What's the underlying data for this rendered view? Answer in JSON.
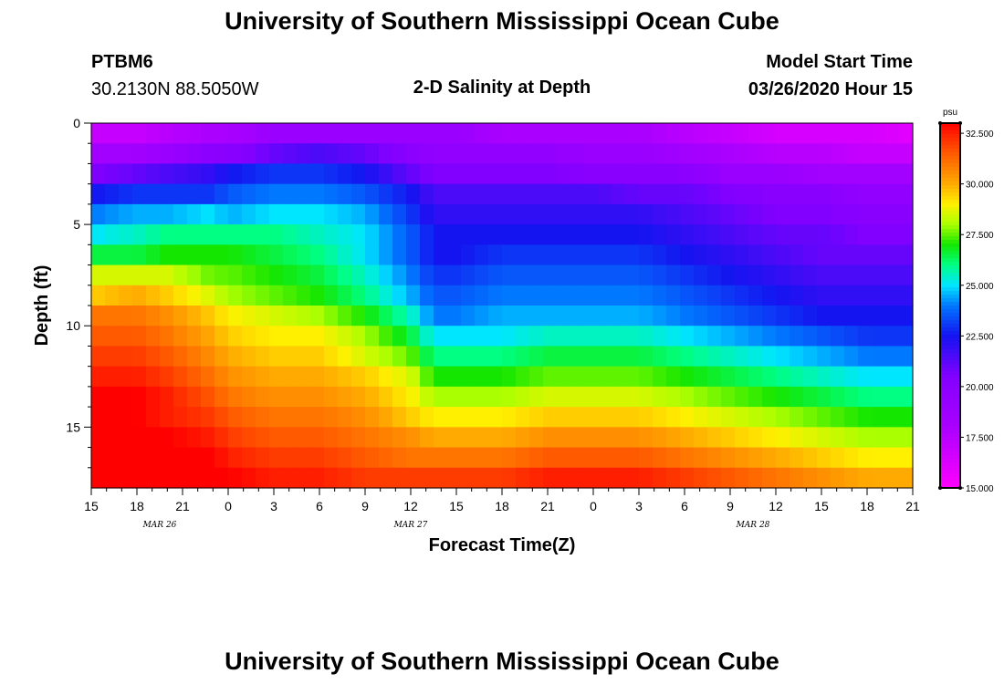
{
  "header": {
    "title": "University of Southern Mississippi Ocean Cube",
    "station": "PTBM6",
    "coords": "30.2130N 88.5050W",
    "plot_title": "2-D Salinity at Depth",
    "model_start_label": "Model Start Time",
    "model_start_value": "03/26/2020 Hour 15"
  },
  "footer": {
    "title": "University of Southern Mississippi Ocean Cube"
  },
  "chart_data": {
    "type": "heatmap",
    "title": "2-D Salinity at Depth",
    "xlabel": "Forecast Time(Z)",
    "ylabel": "Depth (ft)",
    "x_tick_labels": [
      "15",
      "18",
      "21",
      "0",
      "3",
      "6",
      "9",
      "12",
      "15",
      "18",
      "21",
      "0",
      "3",
      "6",
      "9",
      "12",
      "15",
      "18",
      "21"
    ],
    "x_range_hours": [
      0,
      54
    ],
    "date_labels": [
      {
        "label": "MAR 26",
        "hour": 4.5
      },
      {
        "label": "MAR 27",
        "hour": 21
      },
      {
        "label": "MAR 28",
        "hour": 43.5
      }
    ],
    "y_ticks": [
      0,
      5,
      10,
      15
    ],
    "y_tick_labels": [
      "0",
      "5",
      "10",
      "15"
    ],
    "ylim": [
      0,
      18
    ],
    "colorbar": {
      "unit": "psu",
      "min": 15.0,
      "max": 33.0,
      "tick_values": [
        32.5,
        30.0,
        27.5,
        25.0,
        22.5,
        20.0,
        17.5,
        15.0
      ],
      "tick_labels": [
        "32.500",
        "30.000",
        "27.500",
        "25.000",
        "22.500",
        "20.000",
        "17.500",
        "15.000"
      ]
    },
    "depth_levels_ft": [
      0.5,
      1.5,
      2.5,
      3.5,
      4.5,
      5.5,
      6.5,
      7.5,
      8.5,
      9.5,
      10.5,
      11.5,
      12.5,
      13.5,
      14.5,
      15.5,
      16.5,
      17.5
    ],
    "key_times_hours": [
      0,
      3,
      5,
      8,
      9,
      12,
      15,
      18,
      21,
      22.5,
      24,
      27,
      30,
      33,
      36,
      39,
      42,
      45,
      48,
      51,
      54
    ],
    "salinity_psu": [
      [
        17,
        17,
        17.5,
        18,
        18,
        19,
        19,
        19,
        19,
        19,
        19,
        18,
        18,
        18,
        18,
        17.5,
        17,
        16.5,
        16.5,
        16.5,
        16
      ],
      [
        18.5,
        18.5,
        19,
        20,
        20,
        21,
        21.5,
        21,
        20,
        19.5,
        19.5,
        19.5,
        19.5,
        19,
        19,
        18.5,
        18,
        17.5,
        17.5,
        17,
        17
      ],
      [
        20.5,
        21,
        21.5,
        22,
        22.5,
        23,
        23,
        22.5,
        21,
        20.5,
        20.5,
        20.5,
        20.5,
        20,
        20,
        20,
        19,
        19,
        18.5,
        18.5,
        18.5
      ],
      [
        22.5,
        23,
        23,
        23,
        23.5,
        24,
        24,
        23.5,
        22.5,
        21.5,
        21.5,
        21.5,
        21.5,
        21.5,
        21,
        21,
        20.5,
        20,
        20,
        19.5,
        19.5
      ],
      [
        24,
        24.5,
        24.5,
        25,
        24.5,
        25,
        25,
        24.5,
        23,
        22,
        22,
        22,
        22,
        22,
        22,
        21.5,
        21,
        20.5,
        20.5,
        20,
        20
      ],
      [
        25,
        25.5,
        26,
        26,
        26,
        26,
        25.5,
        25,
        23.5,
        22.5,
        22.5,
        22.5,
        22.5,
        22.5,
        22.5,
        22,
        21.5,
        21,
        21,
        20.5,
        20.5
      ],
      [
        26.5,
        26.5,
        27,
        27,
        27,
        26.5,
        26,
        25,
        23.5,
        22.5,
        22.5,
        23,
        23,
        23,
        23,
        22.5,
        22,
        21.5,
        21,
        21,
        21
      ],
      [
        28.5,
        28.5,
        28.5,
        27.5,
        27.5,
        27,
        26.5,
        25.5,
        24,
        23,
        23,
        23.5,
        23.5,
        23.5,
        23.5,
        23,
        22.5,
        22,
        21.5,
        21.5,
        21.5
      ],
      [
        29.5,
        30,
        29.5,
        28.5,
        28,
        27.5,
        27,
        26,
        24.5,
        23.5,
        23.5,
        24,
        24,
        24,
        24,
        23.5,
        23,
        22.5,
        22,
        22,
        22
      ],
      [
        31,
        31,
        30.5,
        29.5,
        29,
        28.5,
        28,
        27,
        25.5,
        24,
        24,
        24.5,
        24.5,
        24.5,
        24.5,
        24,
        23.5,
        23,
        22.5,
        22.5,
        22.5
      ],
      [
        31.5,
        31.5,
        31,
        30,
        29.5,
        29,
        29,
        28,
        26.5,
        25,
        25,
        25,
        25.5,
        25.5,
        25.5,
        25,
        24.5,
        24,
        23.5,
        23,
        23
      ],
      [
        32,
        32,
        31.5,
        30.5,
        30,
        29.5,
        29.5,
        28.5,
        27.5,
        26,
        26,
        26,
        26.5,
        26.5,
        26.5,
        26,
        25.5,
        25,
        24.5,
        24,
        24
      ],
      [
        32.5,
        32.5,
        32,
        31,
        30.5,
        30,
        30,
        29.5,
        28.5,
        27,
        27,
        27,
        27.5,
        27.5,
        27.5,
        27,
        26.5,
        26,
        25.5,
        25,
        25
      ],
      [
        33,
        33,
        32.5,
        31.5,
        31,
        30.5,
        30.5,
        30,
        29,
        28,
        28,
        28,
        28.5,
        28.5,
        28.5,
        28,
        27.5,
        27,
        26.5,
        26,
        26
      ],
      [
        33,
        33,
        32.5,
        32,
        31.5,
        31,
        31,
        30.5,
        29.5,
        29,
        29,
        29,
        29.5,
        29.5,
        29.5,
        29,
        28.5,
        28,
        27.5,
        27,
        27
      ],
      [
        33,
        33,
        33,
        32.5,
        32,
        31.5,
        31.5,
        31,
        30.5,
        30,
        30,
        30,
        30.5,
        30.5,
        30.5,
        30,
        29.5,
        29,
        28.5,
        28,
        28
      ],
      [
        33,
        33,
        33,
        33,
        32.5,
        32,
        32,
        31.5,
        31,
        31,
        31,
        31,
        31.5,
        31.5,
        31.5,
        31,
        30.5,
        30,
        29.5,
        29,
        29
      ],
      [
        33,
        33,
        33,
        33,
        33,
        32.5,
        32.5,
        32,
        32,
        32,
        32,
        32,
        32.5,
        32.5,
        32.5,
        32,
        31.5,
        31,
        30.5,
        30,
        30
      ]
    ]
  }
}
